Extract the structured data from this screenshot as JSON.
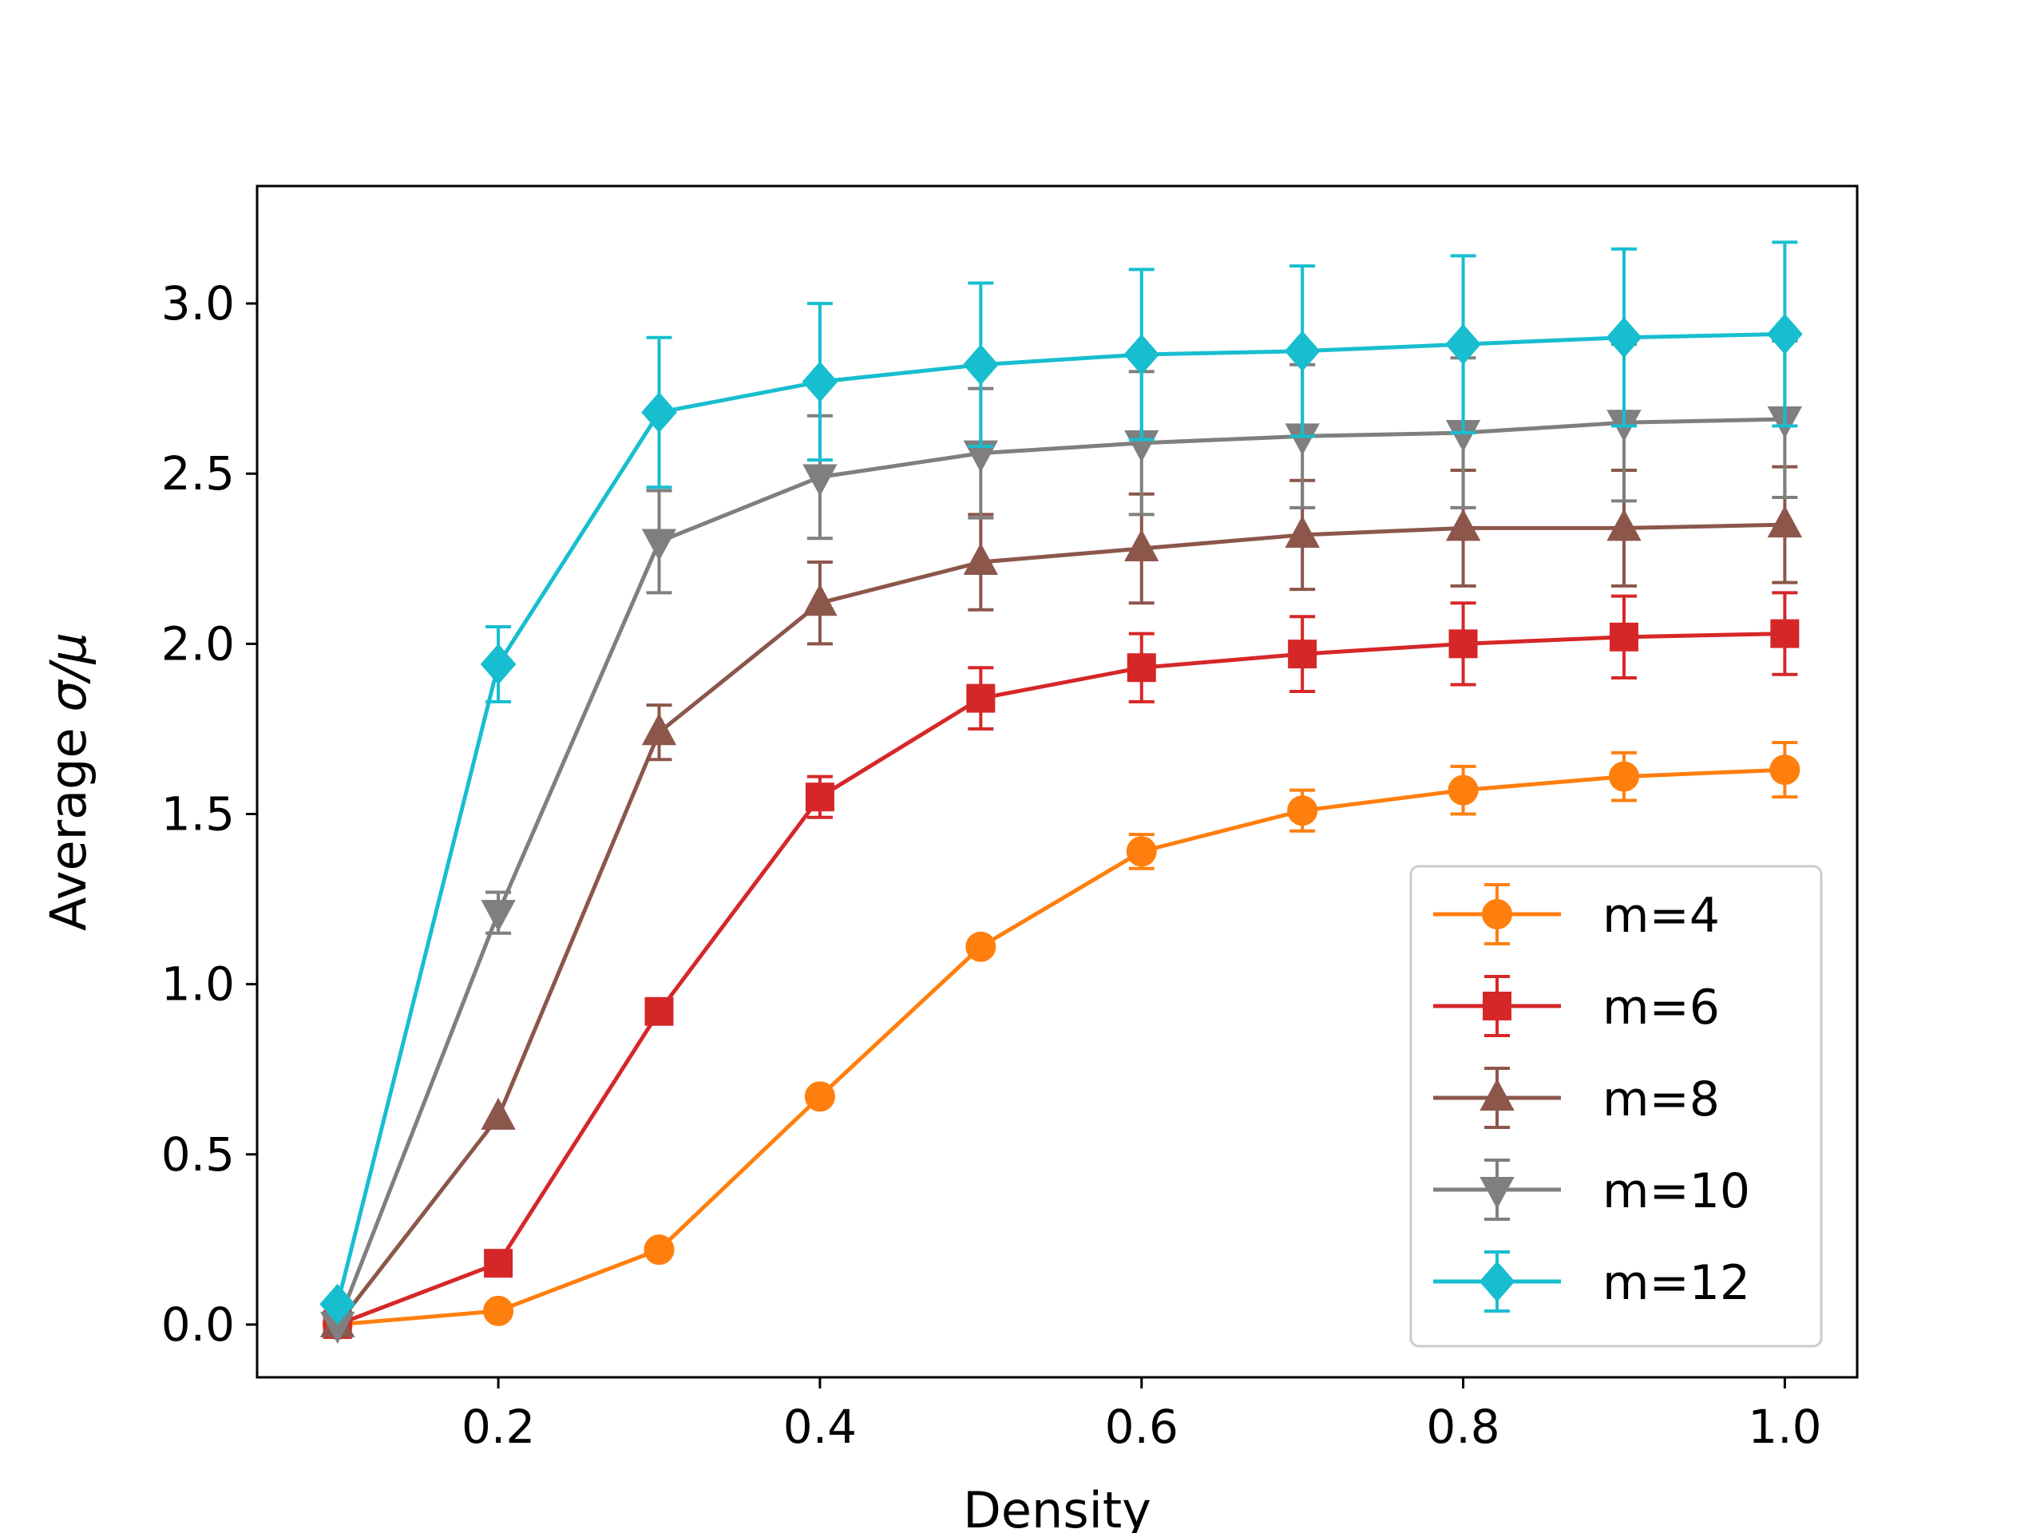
{
  "chart_data": {
    "type": "line",
    "title": "",
    "xlabel": "Density",
    "ylabel_prefix": "Average ",
    "ylabel_math": "σ/μ",
    "xlim": [
      0.05,
      1.045
    ],
    "ylim": [
      -0.155,
      3.345
    ],
    "x_ticks": [
      0.2,
      0.4,
      0.6,
      0.8,
      1.0
    ],
    "x_tick_labels": [
      "0.2",
      "0.4",
      "0.6",
      "0.8",
      "1.0"
    ],
    "y_ticks": [
      0.0,
      0.5,
      1.0,
      1.5,
      2.0,
      2.5,
      3.0
    ],
    "y_tick_labels": [
      "0.0",
      "0.5",
      "1.0",
      "1.5",
      "2.0",
      "2.5",
      "3.0"
    ],
    "grid": false,
    "legend_position": "lower-right",
    "x": [
      0.1,
      0.2,
      0.3,
      0.4,
      0.5,
      0.6,
      0.7,
      0.8,
      0.9,
      1.0
    ],
    "series": [
      {
        "name": "m=4",
        "color": "#ff7f0e",
        "marker": "circle",
        "values": [
          0.0,
          0.04,
          0.22,
          0.67,
          1.11,
          1.39,
          1.51,
          1.57,
          1.61,
          1.63
        ],
        "errors": [
          0.0,
          0.0,
          0.0,
          0.0,
          0.0,
          0.05,
          0.06,
          0.07,
          0.07,
          0.08
        ]
      },
      {
        "name": "m=6",
        "color": "#d62728",
        "marker": "square",
        "values": [
          0.0,
          0.18,
          0.92,
          1.55,
          1.84,
          1.93,
          1.97,
          2.0,
          2.02,
          2.03
        ],
        "errors": [
          0.0,
          0.0,
          0.0,
          0.06,
          0.09,
          0.1,
          0.11,
          0.12,
          0.12,
          0.12
        ]
      },
      {
        "name": "m=8",
        "color": "#8c564b",
        "marker": "triangle-up",
        "values": [
          0.0,
          0.61,
          1.74,
          2.12,
          2.24,
          2.28,
          2.32,
          2.34,
          2.34,
          2.35
        ],
        "errors": [
          0.0,
          0.0,
          0.08,
          0.12,
          0.14,
          0.16,
          0.16,
          0.17,
          0.17,
          0.17
        ]
      },
      {
        "name": "m=10",
        "color": "#7f7f7f",
        "marker": "triangle-down",
        "values": [
          0.0,
          1.21,
          2.3,
          2.49,
          2.56,
          2.59,
          2.61,
          2.62,
          2.65,
          2.66
        ],
        "errors": [
          0.0,
          0.06,
          0.15,
          0.18,
          0.19,
          0.21,
          0.21,
          0.22,
          0.23,
          0.23
        ]
      },
      {
        "name": "m=12",
        "color": "#17becf",
        "marker": "diamond",
        "values": [
          0.06,
          1.94,
          2.68,
          2.77,
          2.82,
          2.85,
          2.86,
          2.88,
          2.9,
          2.91
        ],
        "errors": [
          0.0,
          0.11,
          0.22,
          0.23,
          0.24,
          0.25,
          0.25,
          0.26,
          0.26,
          0.27
        ]
      }
    ]
  }
}
